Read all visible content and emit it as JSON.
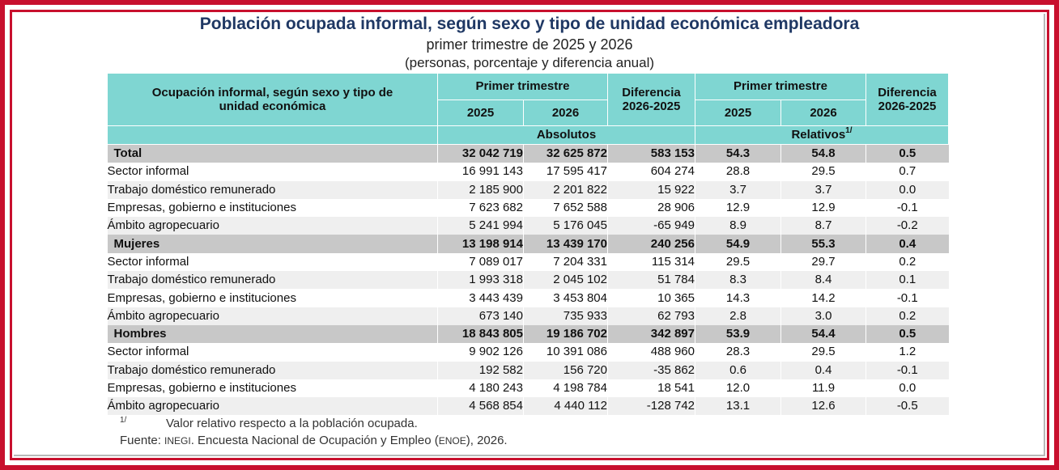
{
  "title": "Población ocupada informal, según sexo y tipo de unidad económica empleadora",
  "subtitle": "primer trimestre de 2025 y 2026",
  "units": "(personas, porcentaje y diferencia anual)",
  "header": {
    "row_label": "Ocupación informal, según sexo y tipo de unidad económica",
    "primer_trimestre": "Primer trimestre",
    "diferencia": "Diferencia 2026-2025",
    "year_a": "2025",
    "year_b": "2026",
    "absolutos": "Absolutos",
    "relativos": "Relativos",
    "relativos_sup": "1/"
  },
  "rows": [
    {
      "label": "Total",
      "group": true,
      "a2025": "32 042 719",
      "a2026": "32 625 872",
      "adif": "583 153",
      "r2025": "54.3",
      "r2026": "54.8",
      "rdif": "0.5"
    },
    {
      "label": "Sector informal",
      "group": false,
      "a2025": "16 991 143",
      "a2026": "17 595 417",
      "adif": "604 274",
      "r2025": "28.8",
      "r2026": "29.5",
      "rdif": "0.7"
    },
    {
      "label": "Trabajo doméstico remunerado",
      "group": false,
      "a2025": "2 185 900",
      "a2026": "2 201 822",
      "adif": "15 922",
      "r2025": "3.7",
      "r2026": "3.7",
      "rdif": "0.0"
    },
    {
      "label": "Empresas, gobierno e instituciones",
      "group": false,
      "a2025": "7 623 682",
      "a2026": "7 652 588",
      "adif": "28 906",
      "r2025": "12.9",
      "r2026": "12.9",
      "rdif": "-0.1"
    },
    {
      "label": "Ámbito agropecuario",
      "group": false,
      "a2025": "5 241 994",
      "a2026": "5 176 045",
      "adif": "-65 949",
      "r2025": "8.9",
      "r2026": "8.7",
      "rdif": "-0.2"
    },
    {
      "label": "Mujeres",
      "group": true,
      "a2025": "13 198 914",
      "a2026": "13 439 170",
      "adif": "240 256",
      "r2025": "54.9",
      "r2026": "55.3",
      "rdif": "0.4"
    },
    {
      "label": "Sector informal",
      "group": false,
      "a2025": "7 089 017",
      "a2026": "7 204 331",
      "adif": "115 314",
      "r2025": "29.5",
      "r2026": "29.7",
      "rdif": "0.2"
    },
    {
      "label": "Trabajo doméstico remunerado",
      "group": false,
      "a2025": "1 993 318",
      "a2026": "2 045 102",
      "adif": "51 784",
      "r2025": "8.3",
      "r2026": "8.4",
      "rdif": "0.1"
    },
    {
      "label": "Empresas, gobierno e instituciones",
      "group": false,
      "a2025": "3 443 439",
      "a2026": "3 453 804",
      "adif": "10 365",
      "r2025": "14.3",
      "r2026": "14.2",
      "rdif": "-0.1"
    },
    {
      "label": "Ámbito agropecuario",
      "group": false,
      "a2025": "673 140",
      "a2026": "735 933",
      "adif": "62 793",
      "r2025": "2.8",
      "r2026": "3.0",
      "rdif": "0.2"
    },
    {
      "label": "Hombres",
      "group": true,
      "a2025": "18 843 805",
      "a2026": "19 186 702",
      "adif": "342 897",
      "r2025": "53.9",
      "r2026": "54.4",
      "rdif": "0.5"
    },
    {
      "label": "Sector informal",
      "group": false,
      "a2025": "9 902 126",
      "a2026": "10 391 086",
      "adif": "488 960",
      "r2025": "28.3",
      "r2026": "29.5",
      "rdif": "1.2"
    },
    {
      "label": "Trabajo doméstico remunerado",
      "group": false,
      "a2025": "192 582",
      "a2026": "156 720",
      "adif": "-35 862",
      "r2025": "0.6",
      "r2026": "0.4",
      "rdif": "-0.1"
    },
    {
      "label": "Empresas, gobierno e instituciones",
      "group": false,
      "a2025": "4 180 243",
      "a2026": "4 198 784",
      "adif": "18 541",
      "r2025": "12.0",
      "r2026": "11.9",
      "rdif": "0.0"
    },
    {
      "label": "Ámbito agropecuario",
      "group": false,
      "a2025": "4 568 854",
      "a2026": "4 440 112",
      "adif": "-128 742",
      "r2025": "13.1",
      "r2026": "12.6",
      "rdif": "-0.5"
    }
  ],
  "footnote": {
    "mark": "1/",
    "text": "Valor relativo respecto a la población ocupada."
  },
  "source": {
    "prefix": "Fuente: ",
    "org": "INEGI",
    "middle": ". Encuesta Nacional de Ocupación y Empleo (",
    "acronym": "ENOE",
    "suffix": "), 2026."
  },
  "colors": {
    "frame": "#c8102e",
    "title": "#1f3864",
    "header_bg": "#7fd6d2",
    "group_row_bg": "#c8c8c8",
    "alt_row_bg": "#efefef"
  }
}
